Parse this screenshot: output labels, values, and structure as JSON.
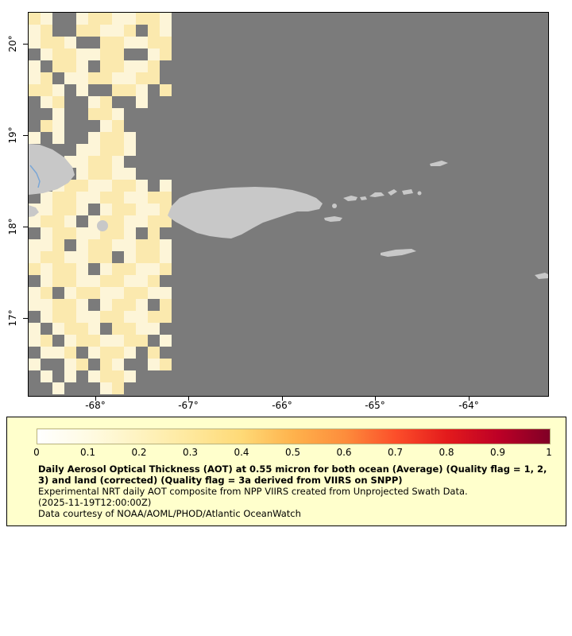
{
  "map": {
    "background_color": "#7b7b7b",
    "land_color": "#c8c8c8",
    "river_color": "#7aa6d6",
    "y_axis_ticks": [
      "20°",
      "19°",
      "18°",
      "17°"
    ],
    "x_axis_ticks": [
      "-68°",
      "-67°",
      "-66°",
      "-65°",
      "-64°"
    ],
    "aerosol_palette": {
      "a": "#fdf5d8",
      "b": "#fbe9ae"
    },
    "aerosol_grid": [
      "ba..abbaabba",
      "ab..bbaab.ba",
      "abba..bbaabb",
      ".abbaabb..ab",
      "a.bba.bbaab.",
      "ab.aabbaabb.",
      "bba.a..bba.b",
      ".ab..ab..a..",
      "..a..bba....",
      ".ba...ab....",
      "a.a..abba...",
      "....aabba...",
      "...aabba....",
      "....abbaa...",
      "..abbaabba.a",
      ".abbaabbaabb",
      "aabba.abbaab",
      "abba.abbaabb",
      ".abbaabba.b.",
      "aab.abbaabba",
      "abbaabb.abba",
      "babba.abbaab",
      ".abbaabbaab.",
      "ab.abbaabbaa",
      "aabba.abba.b",
      ".abbaabbaabb",
      "a.abba.bbaa.",
      "ab.abbaabb.a",
      ".aab.abba.b.",
      "a..ab.ba..ab",
      ".a.a.abba...",
      "..a...ab...."
    ]
  },
  "colorbar": {
    "ticks": [
      "0",
      "0.1",
      "0.2",
      "0.3",
      "0.4",
      "0.5",
      "0.6",
      "0.7",
      "0.8",
      "0.9",
      "1"
    ],
    "gradient": [
      "#ffffff",
      "#fffbe3",
      "#fef3c0",
      "#fee89c",
      "#fed976",
      "#feb24c",
      "#fd8d3c",
      "#fc4e2a",
      "#e31a1c",
      "#bd0026",
      "#800026"
    ],
    "legend_background": "#ffffcc"
  },
  "caption": {
    "title_bold": "Daily Aerosol Optical Thickness (AOT) at 0.55 micron for both ocean (Average) (Quality flag = 1, 2, 3) and land (corrected) (Quality flag = 3a derived from VIIRS on SNPP)",
    "line2": "Experimental NRT daily AOT composite from NPP VIIRS created from Unprojected Swath Data.",
    "line3": "(2025-11-19T12:00:00Z)",
    "line4": "Data courtesy of NOAA/AOML/PHOD/Atlantic OceanWatch"
  }
}
